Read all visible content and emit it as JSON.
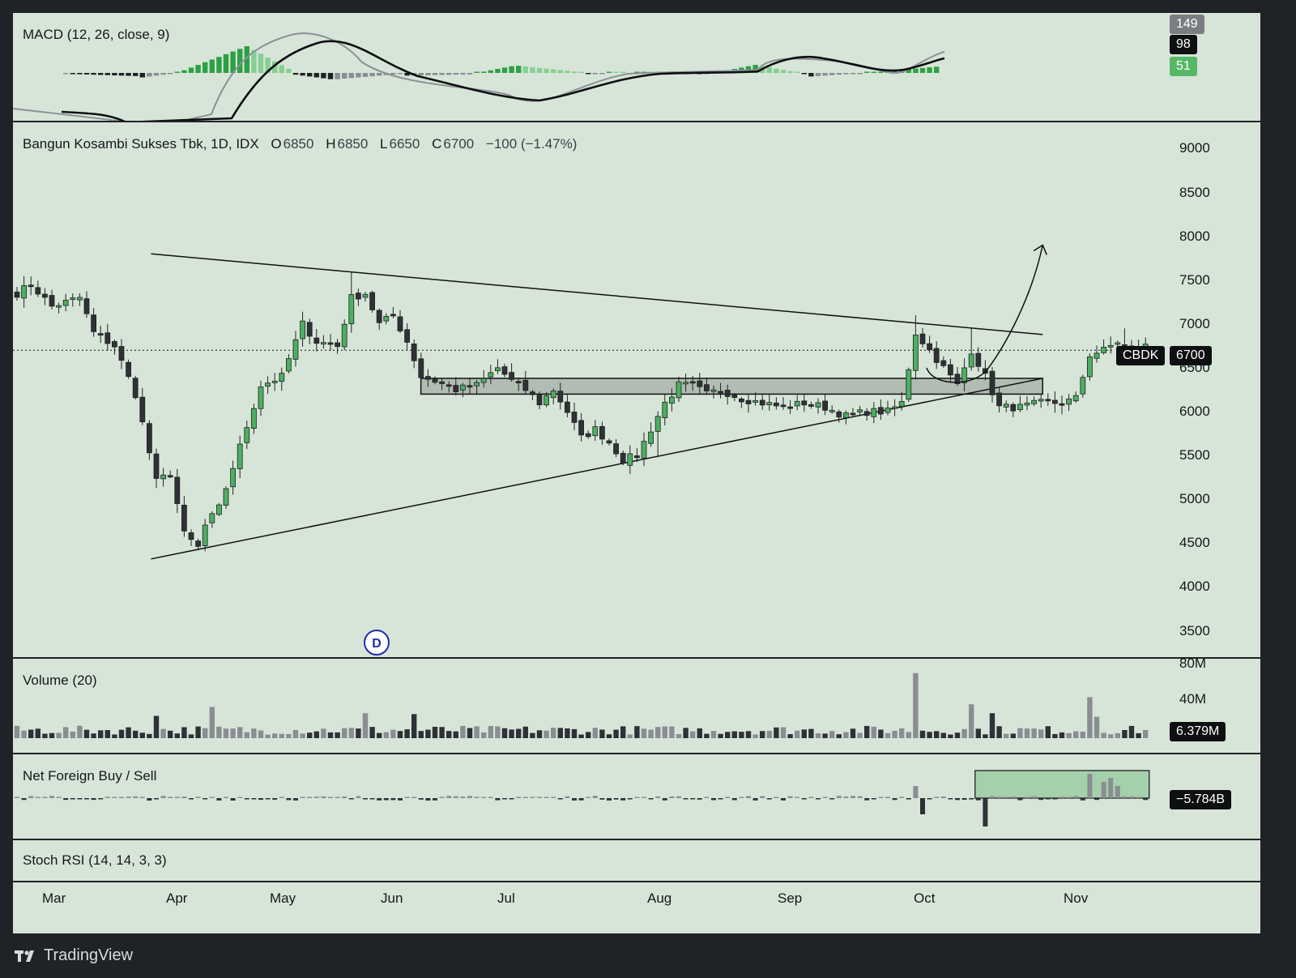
{
  "app": {
    "brand": "TradingView"
  },
  "symbol": {
    "name": "Bangun Kosambi Sukses Tbk, 1D, IDX",
    "ticker": "CBDK",
    "open": "6850",
    "high": "6850",
    "low": "6650",
    "close": "6700",
    "change": "−100 (−1.47%)",
    "last_label": "6700"
  },
  "macd": {
    "title": "MACD (12, 26, close, 9)",
    "badge_top": "149",
    "badge_mid": "98",
    "badge_low": "51"
  },
  "volume": {
    "title": "Volume (20)",
    "ticks": [
      "80M",
      "40M"
    ],
    "last": "6.379M"
  },
  "foreign": {
    "title": "Net Foreign Buy / Sell",
    "last": "−5.784B"
  },
  "stoch": {
    "title": "Stoch RSI (14, 14, 3, 3)"
  },
  "colors": {
    "bg": "#d6e5d8",
    "up": "#4caf62",
    "down": "#2e3136",
    "frame": "#1f2226"
  },
  "chart_data": {
    "type": "candlestick",
    "title": "Bangun Kosambi Sukses Tbk, 1D, IDX",
    "price_ticks": [
      "9000",
      "8500",
      "8000",
      "7500",
      "7000",
      "6500",
      "6000",
      "5500",
      "5000",
      "4500",
      "4000",
      "3500"
    ],
    "ylim": [
      3200,
      9300
    ],
    "months": [
      "Mar",
      "Apr",
      "May",
      "Jun",
      "Jul",
      "Aug",
      "Sep",
      "Oct",
      "Nov"
    ],
    "last_price_line": 6700,
    "anchors": [
      [
        0,
        7350
      ],
      [
        2,
        7450
      ],
      [
        5,
        7200
      ],
      [
        9,
        7300
      ],
      [
        11,
        6900
      ],
      [
        14,
        6750
      ],
      [
        17,
        6200
      ],
      [
        20,
        5200
      ],
      [
        22,
        5300
      ],
      [
        24,
        4600
      ],
      [
        26,
        4450
      ],
      [
        27,
        4700
      ],
      [
        29,
        4900
      ],
      [
        32,
        5600
      ],
      [
        35,
        6300
      ],
      [
        38,
        6400
      ],
      [
        41,
        7000
      ],
      [
        43,
        6800
      ],
      [
        46,
        6750
      ],
      [
        48,
        7300
      ],
      [
        50,
        7350
      ],
      [
        52,
        7000
      ],
      [
        54,
        7100
      ],
      [
        56,
        6800
      ],
      [
        58,
        6400
      ],
      [
        60,
        6350
      ],
      [
        63,
        6250
      ],
      [
        66,
        6300
      ],
      [
        69,
        6500
      ],
      [
        71,
        6350
      ],
      [
        73,
        6250
      ],
      [
        75,
        6100
      ],
      [
        77,
        6250
      ],
      [
        79,
        6000
      ],
      [
        81,
        5700
      ],
      [
        83,
        5800
      ],
      [
        85,
        5650
      ],
      [
        87,
        5450
      ],
      [
        89,
        5500
      ],
      [
        91,
        5800
      ],
      [
        93,
        6100
      ],
      [
        95,
        6300
      ],
      [
        97,
        6300
      ],
      [
        99,
        6200
      ],
      [
        101,
        6250
      ],
      [
        104,
        6150
      ],
      [
        107,
        6100
      ],
      [
        110,
        6050
      ],
      [
        113,
        6100
      ],
      [
        116,
        6050
      ],
      [
        119,
        5950
      ],
      [
        122,
        6000
      ],
      [
        125,
        6000
      ],
      [
        127,
        6100
      ],
      [
        129,
        6900
      ],
      [
        131,
        6700
      ],
      [
        133,
        6500
      ],
      [
        135,
        6300
      ],
      [
        137,
        6700
      ],
      [
        139,
        6400
      ],
      [
        141,
        6050
      ],
      [
        144,
        6050
      ],
      [
        147,
        6100
      ],
      [
        150,
        6100
      ],
      [
        152,
        6150
      ],
      [
        154,
        6650
      ],
      [
        156,
        6700
      ],
      [
        158,
        6800
      ],
      [
        160,
        6700
      ],
      [
        162,
        6750
      ]
    ],
    "spikes": [
      [
        48,
        7600
      ],
      [
        129,
        7100
      ],
      [
        137,
        6950
      ],
      [
        92,
        5480
      ],
      [
        159,
        6950
      ]
    ],
    "triangle": {
      "upper": [
        [
          "2024-03-25",
          7800
        ],
        [
          "2024-10-25",
          6880
        ]
      ],
      "lower": [
        [
          "2024-03-25",
          4320
        ],
        [
          "2024-10-25",
          6380
        ]
      ]
    },
    "zone": {
      "start": "2024-06-08",
      "end": "2024-10-25",
      "top": 6380,
      "bottom": 6200
    },
    "projection": [
      [
        6500,
        "2024-10-01"
      ],
      [
        6400,
        "2024-10-07"
      ],
      [
        7900,
        "2024-10-25"
      ]
    ],
    "event_marker": "D",
    "volume_spikes": [
      [
        129,
        73
      ],
      [
        154,
        46
      ],
      [
        28,
        35
      ],
      [
        137,
        38
      ],
      [
        140,
        28
      ],
      [
        50,
        28
      ],
      [
        57,
        27
      ],
      [
        20,
        25
      ],
      [
        155,
        24
      ]
    ],
    "foreign_spikes": [
      [
        129,
        15
      ],
      [
        130,
        -20
      ],
      [
        139,
        -35
      ],
      [
        154,
        30
      ],
      [
        156,
        20
      ],
      [
        157,
        25
      ],
      [
        158,
        15
      ]
    ],
    "foreign_box": {
      "start_index": 138,
      "end_index": 163
    }
  }
}
